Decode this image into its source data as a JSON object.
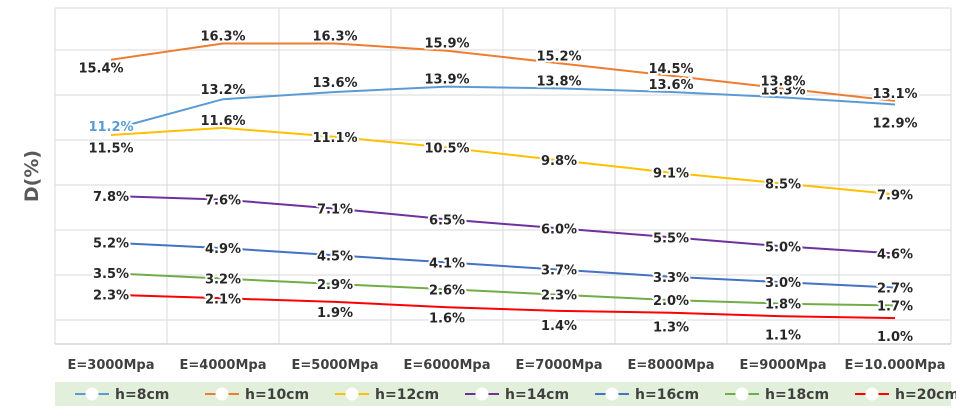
{
  "chart_data": {
    "type": "line",
    "title": "",
    "xlabel": "",
    "ylabel": "D(%)",
    "categories": [
      "E=3000Mpa",
      "E=4000Mpa",
      "E=5000Mpa",
      "E=6000Mpa",
      "E=7000Mpa",
      "E=8000Mpa",
      "E=9000Mpa",
      "E=10.000Mpa"
    ],
    "ylim": [
      0,
      18
    ],
    "grid": true,
    "legend_position": "bottom",
    "series": [
      {
        "name": "h=8cm",
        "color": "#5b9bd5",
        "values": [
          11.5,
          13.2,
          13.6,
          13.9,
          13.8,
          13.6,
          13.3,
          12.9
        ]
      },
      {
        "name": "h=10cm",
        "color": "#ed7d31",
        "values": [
          15.4,
          16.3,
          16.3,
          15.9,
          15.2,
          14.5,
          13.8,
          13.1
        ]
      },
      {
        "name": "h=12cm",
        "color": "#ffc000",
        "values": [
          11.2,
          11.6,
          11.1,
          10.5,
          9.8,
          9.1,
          8.5,
          7.9
        ]
      },
      {
        "name": "h=14cm",
        "color": "#7030a0",
        "values": [
          7.8,
          7.6,
          7.1,
          6.5,
          6.0,
          5.5,
          5.0,
          4.6
        ]
      },
      {
        "name": "h=16cm",
        "color": "#4472c4",
        "values": [
          5.2,
          4.9,
          4.5,
          4.1,
          3.7,
          3.3,
          3.0,
          2.7
        ]
      },
      {
        "name": "h=18cm",
        "color": "#70ad47",
        "values": [
          3.5,
          3.2,
          2.9,
          2.6,
          2.3,
          2.0,
          1.8,
          1.7
        ]
      },
      {
        "name": "h=20cm",
        "color": "#ff0000",
        "values": [
          2.3,
          2.1,
          1.9,
          1.6,
          1.4,
          1.3,
          1.1,
          1.0
        ]
      }
    ],
    "data_labels": [
      {
        "series": 0,
        "labels": [
          "11.5%",
          "13.2%",
          "13.6%",
          "13.9%",
          "13.8%",
          "13.6%",
          "13.3%",
          "12.9%"
        ]
      },
      {
        "series": 1,
        "labels": [
          "15.4%",
          "16.3%",
          "16.3%",
          "15.9%",
          "15.2%",
          "14.5%",
          "13.8%",
          "13.1%"
        ]
      },
      {
        "series": 2,
        "labels": [
          "11.2%",
          "11.6%",
          "11.1%",
          "10.5%",
          "9.8%",
          "9.1%",
          "8.5%",
          "7.9%"
        ]
      },
      {
        "series": 3,
        "labels": [
          "7.8%",
          "7.6%",
          "7.1%",
          "6.5%",
          "6.0%",
          "5.5%",
          "5.0%",
          "4.6%"
        ]
      },
      {
        "series": 4,
        "labels": [
          "5.2%",
          "4.9%",
          "4.5%",
          "4.1%",
          "3.7%",
          "3.3%",
          "3.0%",
          "2.7%"
        ]
      },
      {
        "series": 5,
        "labels": [
          "3.5%",
          "3.2%",
          "2.9%",
          "2.6%",
          "2.3%",
          "2.0%",
          "1.8%",
          "1.7%"
        ]
      },
      {
        "series": 6,
        "labels": [
          "2.3%",
          "2.1%",
          "1.9%",
          "1.6%",
          "1.4%",
          "1.3%",
          "1.1%",
          "1.0%"
        ]
      }
    ]
  }
}
